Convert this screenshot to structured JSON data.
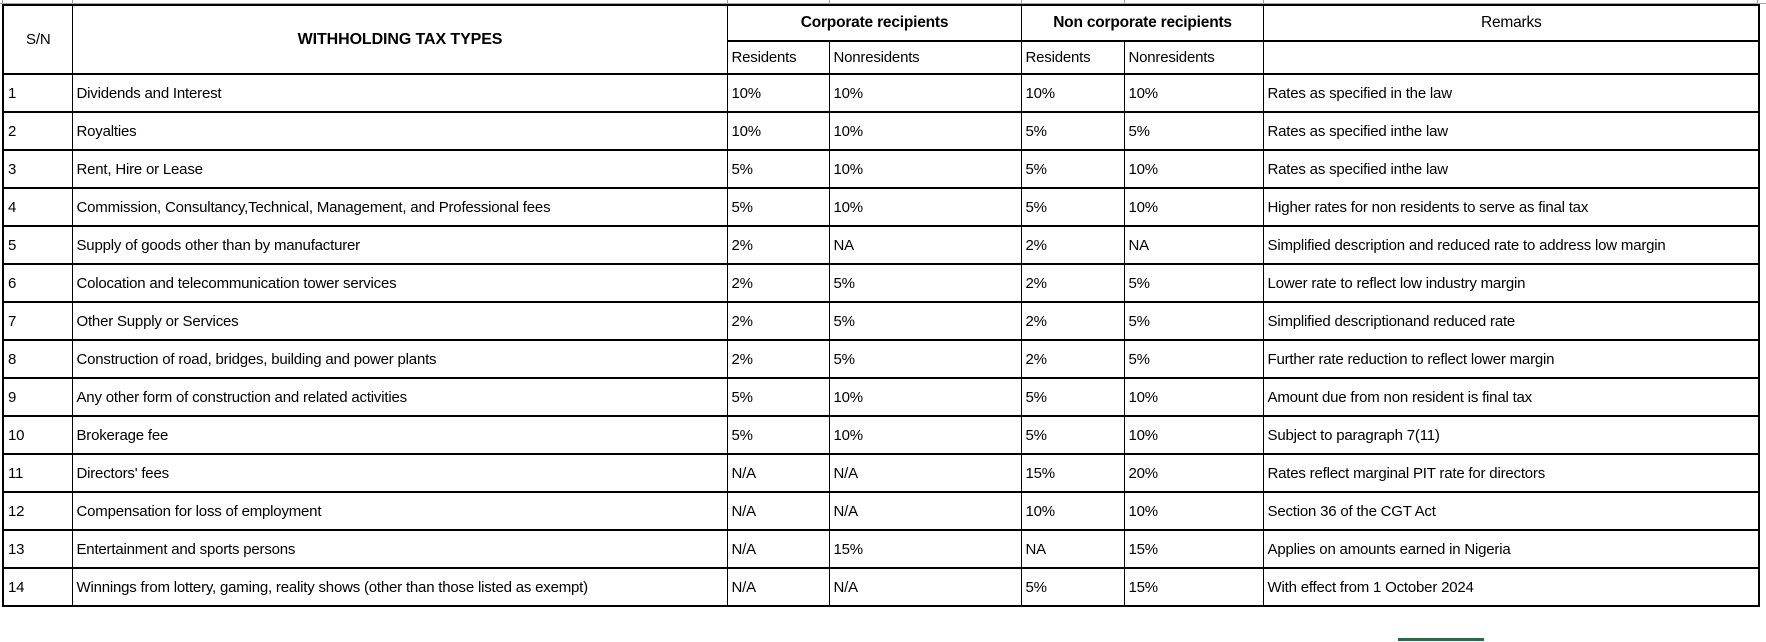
{
  "table": {
    "headers": {
      "sn": "S/N",
      "tax_types": "WITHHOLDING TAX TYPES",
      "corporate_group": "Corporate recipients",
      "non_corporate_group": "Non corporate recipients",
      "remarks": "Remarks",
      "corp_residents": "Residents",
      "corp_nonresidents": "Nonresidents",
      "noncorp_residents": "Residents",
      "noncorp_nonresidents": "Nonresidents"
    },
    "rows": [
      {
        "sn": "1",
        "type": "Dividends and Interest",
        "corp_res": "10%",
        "corp_nonres": "10%",
        "noncorp_res": "10%",
        "noncorp_nonres": "10%",
        "remarks": "Rates as specified in the law"
      },
      {
        "sn": "2",
        "type": "Royalties",
        "corp_res": "10%",
        "corp_nonres": "10%",
        "noncorp_res": "5%",
        "noncorp_nonres": "5%",
        "remarks": "Rates as specified inthe law"
      },
      {
        "sn": "3",
        "type": "Rent, Hire or Lease",
        "corp_res": "5%",
        "corp_nonres": "10%",
        "noncorp_res": "5%",
        "noncorp_nonres": "10%",
        "remarks": "Rates as specified inthe law"
      },
      {
        "sn": "4",
        "type": "Commission, Consultancy,Technical, Management, and Professional fees",
        "corp_res": "5%",
        "corp_nonres": "10%",
        "noncorp_res": "5%",
        "noncorp_nonres": "10%",
        "remarks": "Higher rates for non residents to serve as final tax"
      },
      {
        "sn": "5",
        "type": "Supply of goods other than by manufacturer",
        "corp_res": "2%",
        "corp_nonres": "NA",
        "noncorp_res": "2%",
        "noncorp_nonres": "NA",
        "remarks": "Simplified description and reduced rate to address low margin"
      },
      {
        "sn": "6",
        "type": "Colocation and telecommunication tower services",
        "corp_res": "2%",
        "corp_nonres": "5%",
        "noncorp_res": "2%",
        "noncorp_nonres": "5%",
        "remarks": "Lower rate to reflect low industry margin"
      },
      {
        "sn": "7",
        "type": "Other Supply or Services",
        "corp_res": "2%",
        "corp_nonres": "5%",
        "noncorp_res": "2%",
        "noncorp_nonres": "5%",
        "remarks": "Simplified descriptionand reduced rate"
      },
      {
        "sn": "8",
        "type": "Construction of road, bridges, building and power plants",
        "corp_res": "2%",
        "corp_nonres": "5%",
        "noncorp_res": "2%",
        "noncorp_nonres": "5%",
        "remarks": "Further rate reduction to reflect lower margin"
      },
      {
        "sn": "9",
        "type": "Any other form of construction and related activities",
        "corp_res": "5%",
        "corp_nonres": "10%",
        "noncorp_res": "5%",
        "noncorp_nonres": "10%",
        "remarks": "Amount due from non resident is final tax"
      },
      {
        "sn": "10",
        "type": "Brokerage fee",
        "corp_res": "5%",
        "corp_nonres": "10%",
        "noncorp_res": "5%",
        "noncorp_nonres": "10%",
        "remarks": "Subject to paragraph 7(11)"
      },
      {
        "sn": "11",
        "type": "Directors' fees",
        "corp_res": "N/A",
        "corp_nonres": "N/A",
        "noncorp_res": "15%",
        "noncorp_nonres": "20%",
        "remarks": "Rates reflect marginal PIT rate for directors"
      },
      {
        "sn": "12",
        "type": "Compensation for loss of employment",
        "corp_res": "N/A",
        "corp_nonres": "N/A",
        "noncorp_res": "10%",
        "noncorp_nonres": "10%",
        "remarks": "Section 36 of the CGT Act"
      },
      {
        "sn": "13",
        "type": "Entertainment and sports persons",
        "corp_res": "N/A",
        "corp_nonres": "15%",
        "noncorp_res": "NA",
        "noncorp_nonres": "15%",
        "remarks": "Applies on amounts earned in Nigeria"
      },
      {
        "sn": "14",
        "type": "Winnings from lottery, gaming, reality shows (other than those listed as exempt)",
        "corp_res": "N/A",
        "corp_nonres": "N/A",
        "noncorp_res": "5%",
        "noncorp_nonres": "15%",
        "remarks": "With effect from 1 October 2024"
      }
    ]
  },
  "colors": {
    "table_border": "#000000",
    "gridline_gray": "#a6a6a6",
    "selection_green": "#1e7145"
  }
}
